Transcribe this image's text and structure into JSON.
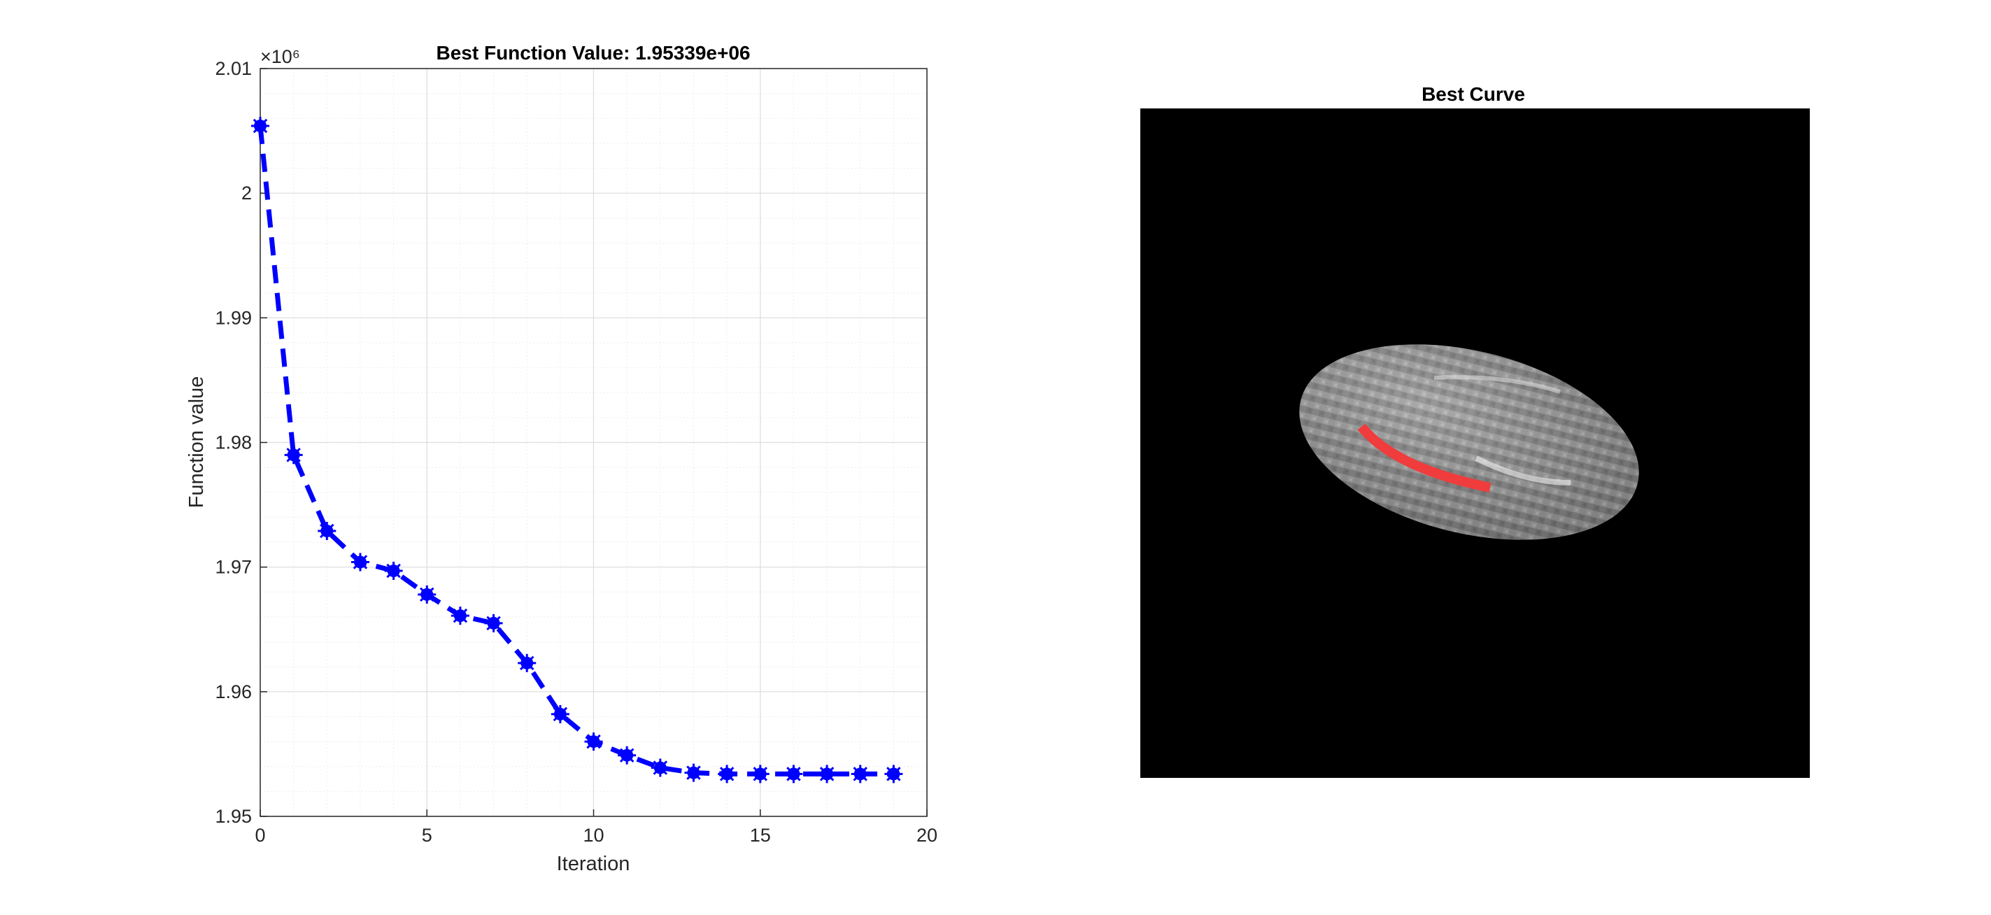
{
  "chart_data": [
    {
      "type": "line",
      "title": "Best Function Value: 1.95339e+06",
      "xlabel": "Iteration",
      "ylabel": "Function value",
      "exponent_label": "×10⁶",
      "xlim": [
        0,
        20
      ],
      "ylim": [
        1.95,
        2.01
      ],
      "x_ticks": [
        0,
        5,
        10,
        15,
        20
      ],
      "x_tick_labels": [
        "0",
        "5",
        "10",
        "15",
        "20"
      ],
      "y_ticks": [
        1.95,
        1.96,
        1.97,
        1.98,
        1.99,
        2.0,
        2.01
      ],
      "y_tick_labels": [
        "1.95",
        "1.96",
        "1.97",
        "1.98",
        "1.99",
        "2",
        "2.01"
      ],
      "grid": true,
      "minor_grid": true,
      "series": [
        {
          "color": "#0000ff",
          "line_style": "dashed",
          "marker": "asterisk",
          "x": [
            0,
            1,
            2,
            3,
            4,
            5,
            6,
            7,
            8,
            9,
            10,
            11,
            12,
            13,
            14,
            15,
            16,
            17,
            18,
            19
          ],
          "y": [
            2.0054,
            1.979,
            1.9729,
            1.9704,
            1.9697,
            1.9678,
            1.9661,
            1.9655,
            1.9623,
            1.9582,
            1.956,
            1.9549,
            1.9539,
            1.9535,
            1.9534,
            1.9534,
            1.9534,
            1.9534,
            1.9534,
            1.9534
          ]
        }
      ]
    },
    {
      "type": "image",
      "title": "Best Curve",
      "background_color": "#000000",
      "curve_color": "#f03c3c"
    }
  ]
}
